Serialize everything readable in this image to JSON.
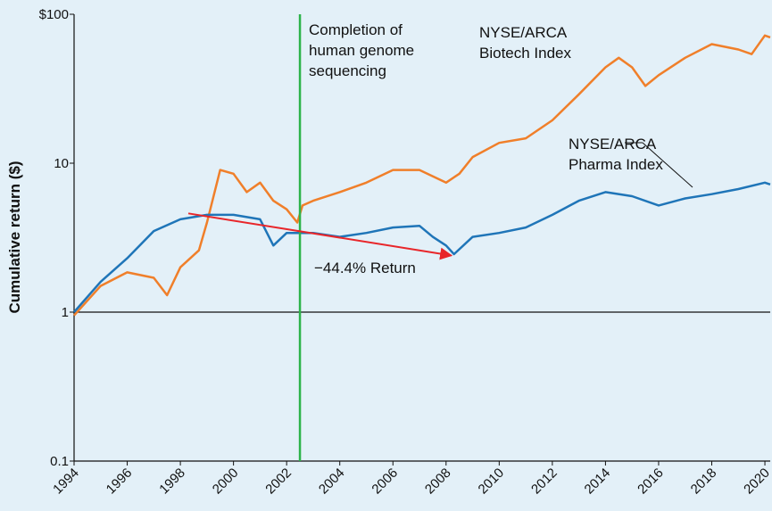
{
  "chart_data": {
    "type": "line",
    "y_label": "Cumulative return ($)",
    "log_y": true,
    "xlim": [
      1994,
      2020.2
    ],
    "xticks": [
      1994,
      1996,
      1998,
      2000,
      2002,
      2004,
      2006,
      2008,
      2010,
      2012,
      2014,
      2016,
      2018,
      2020
    ],
    "ylim": [
      0.1,
      100
    ],
    "yticks": [
      0.1,
      1,
      10,
      {
        "value": 100,
        "label": "$100"
      }
    ],
    "hline": 1,
    "vline": {
      "x": 2002.5,
      "color": "#2db34a",
      "text": "Completion of human genome sequencing"
    },
    "arrow": {
      "x": [
        1998.3,
        2008.2
      ],
      "y": [
        4.6,
        2.4
      ],
      "color": "#e8262a",
      "text": "−44.4% Return"
    },
    "series": [
      {
        "name": "NYSE/ARCA Biotech Index",
        "color": "#f07f2a",
        "x": [
          1994,
          1995,
          1996,
          1997,
          1997.5,
          1998,
          1998.7,
          1999,
          1999.5,
          2000,
          2000.5,
          2001,
          2001.5,
          2002,
          2002.4,
          2002.6,
          2003,
          2004,
          2005,
          2006,
          2007,
          2008,
          2008.5,
          2009,
          2010,
          2011,
          2012,
          2013,
          2014,
          2014.5,
          2015,
          2015.5,
          2016,
          2017,
          2018,
          2019,
          2019.5,
          2020,
          2020.2
        ],
        "values": [
          0.95,
          1.5,
          1.85,
          1.7,
          1.3,
          2.0,
          2.6,
          4.0,
          9.0,
          8.5,
          6.4,
          7.4,
          5.6,
          4.9,
          4.0,
          5.2,
          5.6,
          6.4,
          7.4,
          9.0,
          9.0,
          7.4,
          8.5,
          11,
          13.7,
          14.7,
          19.4,
          29,
          44,
          51,
          44,
          33,
          39,
          51,
          63,
          58,
          54,
          72,
          70
        ]
      },
      {
        "name": "NYSE/ARCA Pharma Index",
        "color": "#1f75b8",
        "x": [
          1994,
          1995,
          1996,
          1997,
          1998,
          1999,
          2000,
          2001,
          2001.5,
          2002,
          2003,
          2004,
          2005,
          2006,
          2007,
          2007.5,
          2008,
          2008.3,
          2009,
          2010,
          2011,
          2012,
          2013,
          2014,
          2015,
          2016,
          2017,
          2018,
          2019,
          2020,
          2020.2
        ],
        "values": [
          1.0,
          1.6,
          2.3,
          3.5,
          4.2,
          4.5,
          4.5,
          4.2,
          2.8,
          3.4,
          3.4,
          3.2,
          3.4,
          3.7,
          3.8,
          3.2,
          2.8,
          2.45,
          3.2,
          3.4,
          3.7,
          4.5,
          5.6,
          6.4,
          6.0,
          5.2,
          5.8,
          6.2,
          6.7,
          7.4,
          7.2
        ]
      }
    ]
  }
}
